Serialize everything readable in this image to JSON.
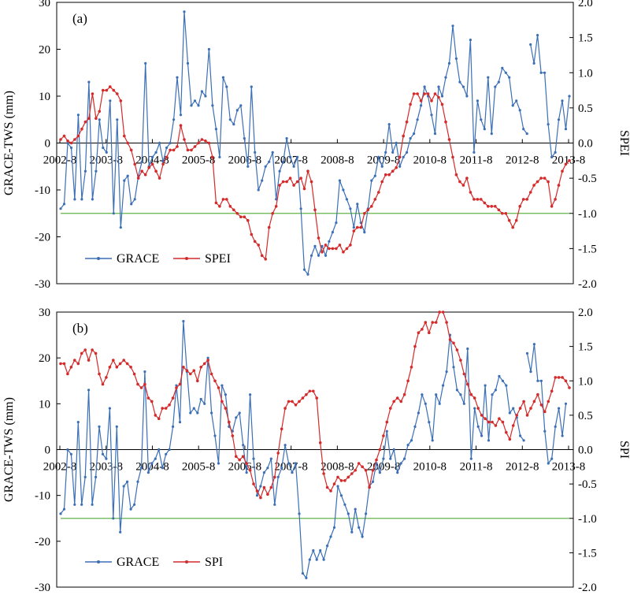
{
  "chart_data": [
    {
      "type": "line",
      "panel_label": "(a)",
      "ylabel": "GRACE-TWS (mm)",
      "y2label": "SPEI",
      "ylim": [
        -30,
        30
      ],
      "y2lim": [
        -2.0,
        2.0
      ],
      "yticks": [
        "30",
        "20",
        "10",
        "0",
        "-10",
        "-20",
        "-30"
      ],
      "y2ticks": [
        "2.0",
        "1.5",
        "1.0",
        "0.5",
        "0.0",
        "-0.5",
        "-1.0",
        "-1.5",
        "-2.0"
      ],
      "xticks": [
        "2002-8",
        "2003-8",
        "2004-8",
        "2005-8",
        "2006-8",
        "2007-8",
        "2008-8",
        "2009-8",
        "2010-8",
        "2011-8",
        "2012-8",
        "2013-8"
      ],
      "threshold": -1.0,
      "colors": {
        "grace": "#3b6fb6",
        "index": "#d42a2a",
        "threshold": "#63b54a"
      },
      "legend": {
        "placement": "bottom-left",
        "entries": [
          "GRACE",
          "SPEI"
        ]
      },
      "series": [
        {
          "name": "GRACE",
          "axis": "left",
          "values": [
            -14,
            -13,
            0,
            -1,
            -12,
            6,
            -12,
            -6,
            13,
            -12,
            -6,
            5,
            -1,
            -2,
            9,
            -15,
            5,
            -18,
            -8,
            -7,
            -13,
            -12,
            -7,
            -4,
            17,
            -5,
            -3,
            -2,
            0,
            -4,
            -1,
            0,
            5,
            14,
            6,
            28,
            17,
            8,
            9,
            8,
            11,
            10,
            20,
            8,
            3,
            -3,
            14,
            12,
            5,
            4,
            7,
            8,
            1,
            -5,
            12,
            -2,
            -10,
            -8,
            -5,
            -4,
            -2,
            -12,
            -6,
            -4,
            1,
            -3,
            -5,
            -3,
            -14,
            -27,
            -28,
            -24,
            -22,
            -24,
            -22,
            -24,
            -21,
            -19,
            -17,
            -8,
            -10,
            -12,
            -14,
            -18,
            -13,
            -17,
            -19,
            -14,
            -8,
            -7,
            -3,
            -5,
            -2,
            4,
            -2,
            0,
            -5,
            -3,
            -2,
            1,
            2,
            5,
            8,
            12,
            10,
            6,
            2,
            12,
            10,
            14,
            17,
            25,
            18,
            13,
            12,
            10,
            22,
            -2,
            9,
            5,
            3,
            14,
            2,
            12,
            13,
            16,
            15,
            14,
            8,
            9,
            7,
            3,
            2
          ],
          "gaps": [
            {
              "start": 133,
              "values": [
                21,
                17,
                23,
                15,
                15,
                4,
                -3,
                -2,
                5,
                9,
                3,
                10
              ]
            }
          ]
        },
        {
          "name": "SPEI",
          "axis": "right",
          "values": [
            0.05,
            0.1,
            0.03,
            0.0,
            0.05,
            0.1,
            0.2,
            0.3,
            0.35,
            0.7,
            0.35,
            0.45,
            0.75,
            0.75,
            0.8,
            0.75,
            0.7,
            0.6,
            0.1,
            0.0,
            -0.1,
            -0.3,
            -0.5,
            -0.4,
            -0.45,
            -0.35,
            -0.3,
            -0.4,
            -0.5,
            -0.3,
            -0.2,
            -0.1,
            -0.1,
            -0.05,
            0.25,
            0.05,
            -0.1,
            -0.1,
            -0.05,
            0.0,
            0.05,
            0.03,
            0.0,
            -0.2,
            -0.85,
            -0.9,
            -0.8,
            -0.8,
            -0.9,
            -0.95,
            -1.0,
            -1.05,
            -1.05,
            -1.1,
            -1.3,
            -1.4,
            -1.45,
            -1.6,
            -1.65,
            -1.2,
            -1.0,
            -0.9,
            -0.6,
            -0.55,
            -0.55,
            -0.5,
            -0.6,
            -0.55,
            -0.5,
            -0.65,
            -0.4,
            -0.55,
            -0.95,
            -1.35,
            -1.55,
            -1.45,
            -1.5,
            -1.5,
            -1.5,
            -1.45,
            -1.55,
            -1.5,
            -1.45,
            -1.25,
            -1.2,
            -1.2,
            -1.0,
            -0.95,
            -0.9,
            -0.8,
            -0.7,
            -0.55,
            -0.45,
            -0.45,
            -0.4,
            -0.35,
            -0.2,
            0.1,
            0.3,
            0.55,
            0.7,
            0.7,
            0.6,
            0.7,
            0.7,
            0.6,
            0.7,
            0.65,
            0.55,
            0.3,
            0.05,
            -0.2,
            -0.45,
            -0.55,
            -0.6,
            -0.5,
            -0.7,
            -0.8,
            -0.8,
            -0.8,
            -0.85,
            -0.9,
            -0.9,
            -0.9,
            -0.95,
            -1.0,
            -1.0,
            -1.1,
            -1.2,
            -1.1,
            -0.9,
            -0.8,
            -0.8,
            -0.7,
            -0.6,
            -0.55,
            -0.5,
            -0.5,
            -0.55,
            -0.9,
            -0.8,
            -0.6,
            -0.4,
            -0.3,
            -0.25
          ]
        }
      ]
    },
    {
      "type": "line",
      "panel_label": "(b)",
      "ylabel": "GRACE-TWS (mm)",
      "y2label": "SPI",
      "ylim": [
        -30,
        30
      ],
      "y2lim": [
        -2.0,
        2.0
      ],
      "yticks": [
        "30",
        "20",
        "10",
        "0",
        "-10",
        "-20",
        "-30"
      ],
      "y2ticks": [
        "2.0",
        "1.5",
        "1.0",
        "0.5",
        "0.0",
        "-0.5",
        "-1.0",
        "-1.5",
        "-2.0"
      ],
      "xticks": [
        "2002-8",
        "2003-8",
        "2004-8",
        "2005-8",
        "2006-8",
        "2007-8",
        "2008-8",
        "2009-8",
        "2010-8",
        "2011-8",
        "2012-8",
        "2013-8"
      ],
      "threshold": -1.0,
      "colors": {
        "grace": "#3b6fb6",
        "index": "#d42a2a",
        "threshold": "#63b54a"
      },
      "legend": {
        "placement": "bottom-left",
        "entries": [
          "GRACE",
          "SPI"
        ]
      },
      "series": [
        {
          "name": "GRACE",
          "axis": "left",
          "values": [
            -14,
            -13,
            0,
            -1,
            -12,
            6,
            -12,
            -6,
            13,
            -12,
            -6,
            5,
            -1,
            -2,
            9,
            -15,
            5,
            -18,
            -8,
            -7,
            -13,
            -12,
            -7,
            -4,
            17,
            -5,
            -3,
            -2,
            0,
            -4,
            -1,
            0,
            5,
            14,
            6,
            28,
            17,
            8,
            9,
            8,
            11,
            10,
            20,
            8,
            3,
            -3,
            14,
            12,
            5,
            4,
            7,
            8,
            1,
            -5,
            12,
            -2,
            -10,
            -8,
            -5,
            -4,
            -2,
            -12,
            -6,
            -4,
            1,
            -3,
            -5,
            -3,
            -14,
            -27,
            -28,
            -24,
            -22,
            -24,
            -22,
            -24,
            -21,
            -19,
            -17,
            -8,
            -10,
            -12,
            -14,
            -18,
            -13,
            -17,
            -19,
            -14,
            -8,
            -7,
            -3,
            -5,
            -2,
            4,
            -2,
            0,
            -5,
            -3,
            -2,
            1,
            2,
            5,
            8,
            12,
            10,
            6,
            2,
            12,
            10,
            14,
            17,
            25,
            18,
            13,
            12,
            10,
            22,
            -2,
            9,
            5,
            3,
            14,
            2,
            12,
            13,
            16,
            15,
            14,
            8,
            9,
            7,
            3,
            2
          ],
          "gaps": [
            {
              "start": 133,
              "values": [
                21,
                17,
                23,
                15,
                15,
                4,
                -3,
                -2,
                5,
                9,
                3,
                10
              ]
            }
          ]
        },
        {
          "name": "SPI",
          "axis": "right",
          "values": [
            1.25,
            1.25,
            1.1,
            1.2,
            1.3,
            1.25,
            1.4,
            1.45,
            1.3,
            1.45,
            1.4,
            1.1,
            0.95,
            1.05,
            1.2,
            1.3,
            1.2,
            1.25,
            1.3,
            1.25,
            1.2,
            1.1,
            0.95,
            0.9,
            0.95,
            0.75,
            0.7,
            0.5,
            0.45,
            0.6,
            0.6,
            0.65,
            0.75,
            0.9,
            0.95,
            1.2,
            1.15,
            1.1,
            1.15,
            1.0,
            1.2,
            1.25,
            1.3,
            1.1,
            1.0,
            0.9,
            0.7,
            0.6,
            0.4,
            0.2,
            -0.1,
            -0.15,
            -0.1,
            -0.2,
            -0.3,
            -0.5,
            -0.6,
            -0.7,
            -0.55,
            -0.65,
            -0.55,
            -0.4,
            -0.05,
            0.3,
            0.6,
            0.7,
            0.7,
            0.65,
            0.7,
            0.75,
            0.8,
            0.85,
            0.85,
            0.75,
            0.1,
            -0.35,
            -0.55,
            -0.6,
            -0.5,
            -0.4,
            -0.45,
            -0.45,
            -0.4,
            -0.35,
            -0.3,
            -0.2,
            -0.25,
            -0.3,
            -0.55,
            -0.3,
            -0.15,
            0.0,
            0.2,
            0.4,
            0.6,
            0.7,
            0.75,
            0.7,
            0.8,
            1.0,
            1.2,
            1.5,
            1.7,
            1.75,
            1.85,
            1.7,
            1.85,
            1.85,
            2.0,
            2.0,
            1.85,
            1.6,
            1.55,
            1.45,
            1.3,
            1.1,
            0.95,
            0.8,
            0.75,
            0.6,
            0.5,
            0.45,
            0.4,
            0.4,
            0.35,
            0.45,
            0.4,
            0.25,
            0.15,
            0.35,
            0.5,
            0.6,
            0.7,
            0.5,
            0.6,
            0.7,
            0.8,
            0.65,
            0.55,
            0.7,
            0.85,
            1.05,
            1.05,
            1.05,
            1.0,
            0.9
          ]
        }
      ]
    }
  ]
}
